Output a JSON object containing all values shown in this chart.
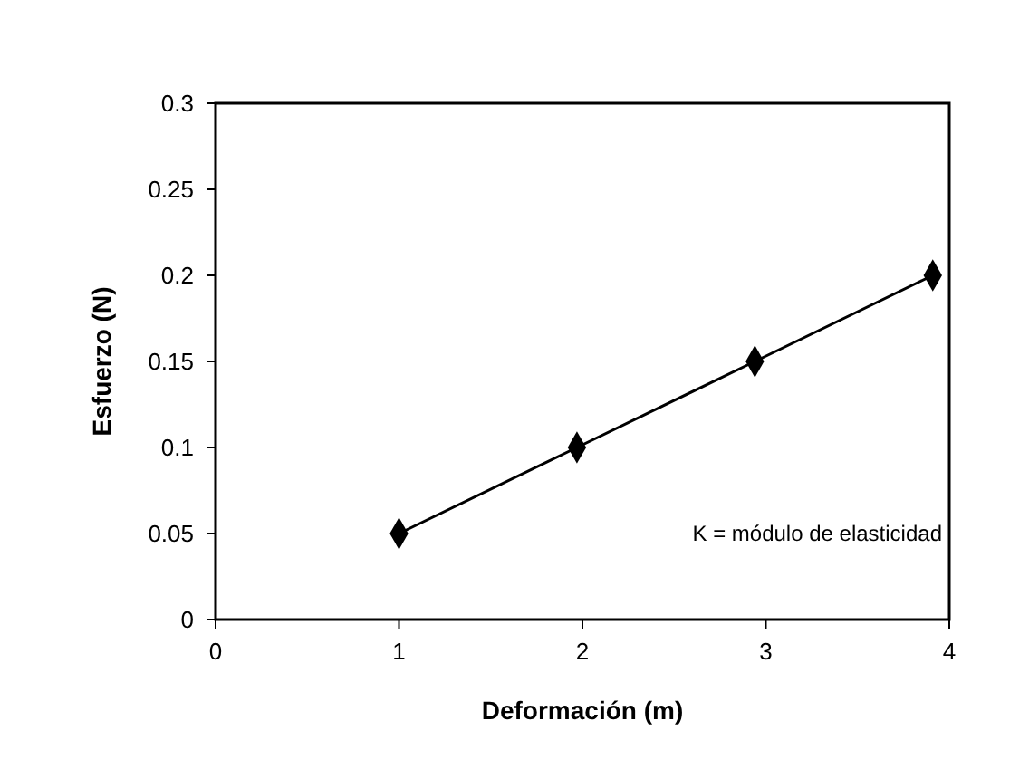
{
  "chart_data": {
    "type": "line",
    "xlabel": "Deformación (m)",
    "ylabel": "Esfuerzo (N)",
    "x": [
      1,
      1.97,
      2.94,
      3.91
    ],
    "series": [
      {
        "color": "#000000",
        "values": [
          0.05,
          0.1,
          0.15,
          0.2
        ]
      }
    ],
    "xlim": [
      0,
      4
    ],
    "xticks": [
      0,
      1,
      2,
      3,
      4
    ],
    "ylim": [
      0,
      0.3
    ],
    "yticks": [
      0,
      0.05,
      0.1,
      0.15,
      0.2,
      0.25,
      0.3
    ],
    "marker": "diamond",
    "line_style": "solid",
    "grid": false,
    "annotations": [
      "K = módulo de elasticidad"
    ]
  }
}
